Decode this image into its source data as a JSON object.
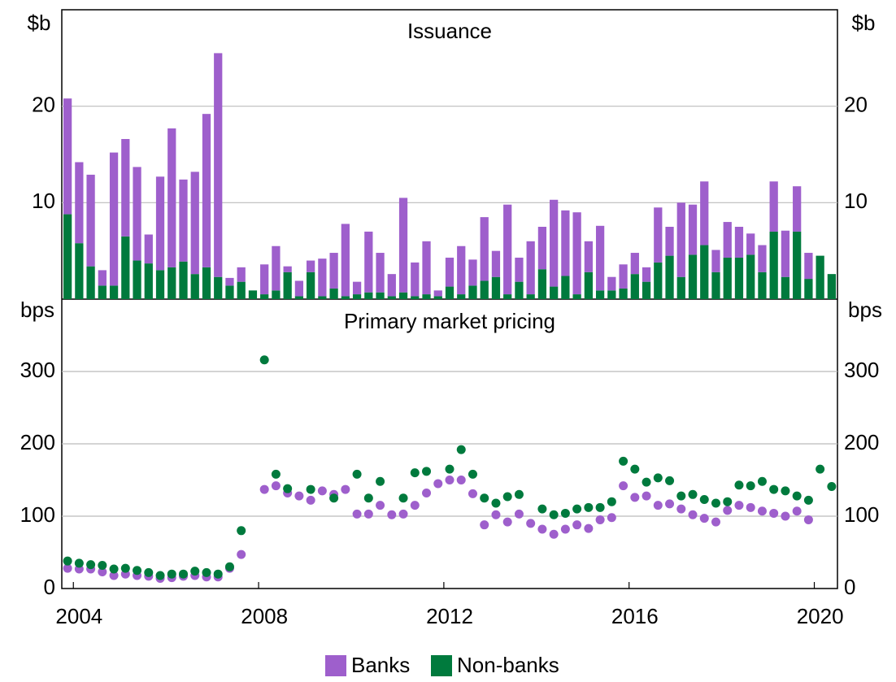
{
  "chart_data": [
    {
      "type": "bar",
      "title": "Issuance",
      "ylabel": "$b",
      "stacked": true,
      "ylim": [
        0,
        30
      ],
      "yticks": [
        10,
        20
      ],
      "grid": true,
      "series": [
        {
          "name": "Banks",
          "color": "#9e5fcc",
          "values": [
            12.0,
            8.4,
            9.5,
            1.6,
            13.8,
            10.1,
            9.7,
            3.0,
            9.7,
            14.4,
            8.5,
            10.6,
            15.9,
            23.2,
            0.8,
            1.5,
            0,
            3.1,
            4.6,
            0.6,
            1.6,
            1.2,
            3.9,
            3.7,
            7.5,
            1.3,
            6.3,
            4.1,
            2.3,
            9.8,
            3.5,
            5.5,
            0.6,
            3.0,
            5.0,
            2.7,
            6.6,
            2.7,
            9.3,
            2.5,
            5.5,
            4.4,
            9.0,
            6.8,
            8.5,
            3.2,
            6.7,
            1.4,
            2.5,
            2.2,
            1.5,
            5.7,
            3.0,
            7.7,
            5.2,
            6.6,
            2.3,
            3.7,
            3.2,
            2.2,
            2.8,
            5.2,
            4.8,
            4.7,
            2.7,
            0,
            0
          ]
        },
        {
          "name": "Non-banks",
          "color": "#007a3d",
          "values": [
            8.8,
            5.8,
            3.4,
            1.4,
            1.4,
            6.5,
            4.0,
            3.7,
            3.0,
            3.3,
            3.9,
            2.6,
            3.3,
            2.3,
            1.4,
            1.8,
            0.9,
            0.5,
            0.9,
            2.8,
            0.3,
            2.8,
            0.3,
            1.1,
            0.3,
            0.5,
            0.7,
            0.7,
            0.3,
            0.7,
            0.3,
            0.5,
            0.3,
            1.3,
            0.5,
            1.4,
            1.9,
            2.3,
            0.5,
            1.8,
            0.5,
            3.1,
            1.3,
            2.4,
            0.5,
            2.8,
            0.9,
            0.9,
            1.1,
            2.6,
            1.8,
            3.8,
            4.5,
            2.3,
            4.6,
            5.6,
            2.8,
            4.3,
            4.3,
            4.6,
            2.8,
            7.0,
            2.3,
            7.0,
            2.1,
            4.5,
            2.6
          ]
        }
      ]
    },
    {
      "type": "scatter",
      "title": "Primary market pricing",
      "ylabel": "bps",
      "ylim": [
        0,
        400
      ],
      "yticks": [
        0,
        100,
        200,
        300
      ],
      "grid": true,
      "categories": [
        null,
        "2004",
        null,
        null,
        null,
        null,
        null,
        null,
        null,
        null,
        null,
        null,
        null,
        null,
        null,
        null,
        null,
        "2008",
        null,
        null,
        null,
        null,
        null,
        null,
        null,
        null,
        null,
        null,
        null,
        null,
        null,
        null,
        null,
        "2012",
        null,
        null,
        null,
        null,
        null,
        null,
        null,
        null,
        null,
        null,
        null,
        null,
        null,
        null,
        null,
        "2016",
        null,
        null,
        null,
        null,
        null,
        null,
        null,
        null,
        null,
        null,
        null,
        null,
        null,
        null,
        null,
        "2020",
        null
      ],
      "series": [
        {
          "name": "Banks",
          "color": "#9e5fcc",
          "values": [
            28,
            27,
            27,
            23,
            18,
            20,
            18,
            17,
            14,
            15,
            17,
            18,
            16,
            16,
            28,
            47,
            null,
            137,
            142,
            132,
            128,
            122,
            135,
            130,
            137,
            103,
            103,
            115,
            102,
            103,
            115,
            132,
            145,
            150,
            150,
            131,
            88,
            102,
            92,
            103,
            90,
            82,
            75,
            82,
            88,
            83,
            95,
            98,
            142,
            126,
            128,
            115,
            117,
            110,
            102,
            97,
            92,
            108,
            115,
            112,
            107,
            104,
            100,
            107,
            95,
            null,
            null
          ]
        },
        {
          "name": "Non-banks",
          "color": "#007a3d",
          "values": [
            38,
            35,
            33,
            32,
            27,
            28,
            25,
            22,
            18,
            20,
            20,
            24,
            22,
            20,
            30,
            80,
            null,
            316,
            158,
            138,
            null,
            137,
            null,
            125,
            null,
            158,
            125,
            148,
            null,
            125,
            160,
            162,
            null,
            165,
            192,
            158,
            125,
            118,
            127,
            130,
            null,
            110,
            102,
            104,
            110,
            112,
            112,
            120,
            176,
            165,
            147,
            153,
            149,
            128,
            130,
            123,
            118,
            120,
            143,
            142,
            148,
            137,
            135,
            128,
            122,
            165,
            141
          ]
        }
      ]
    }
  ]
}
